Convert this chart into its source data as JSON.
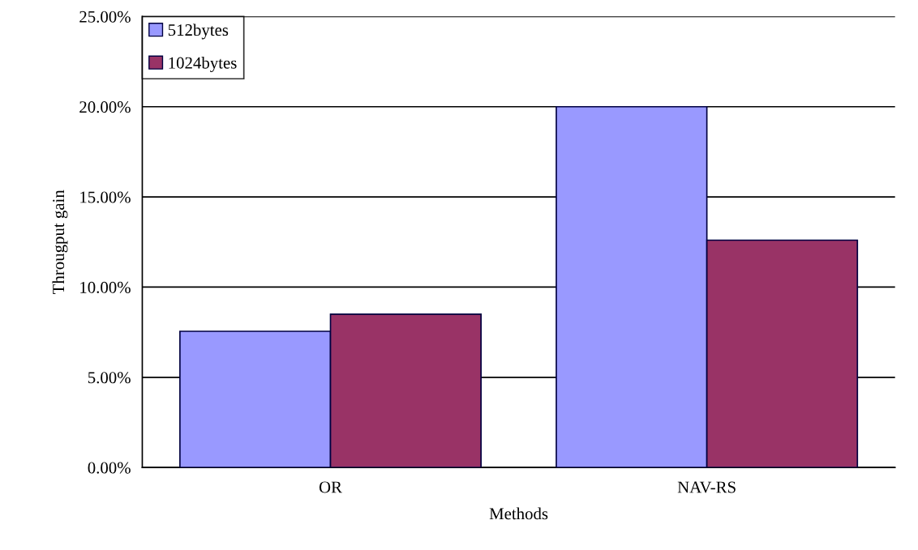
{
  "chart_data": {
    "type": "bar",
    "xlabel": "Methods",
    "ylabel": "Througput gain",
    "categories": [
      "OR",
      "NAV-RS"
    ],
    "series": [
      {
        "name": "512bytes",
        "color": "#9999ff",
        "values": [
          7.55,
          20.0
        ]
      },
      {
        "name": "1024bytes",
        "color": "#993366",
        "values": [
          8.5,
          12.6
        ]
      }
    ],
    "ylim": [
      0,
      25
    ],
    "yticks": [
      {
        "value": 0,
        "label": "0.00%"
      },
      {
        "value": 5,
        "label": "5.00%"
      },
      {
        "value": 10,
        "label": "10.00%"
      },
      {
        "value": 15,
        "label": "15.00%"
      },
      {
        "value": 20,
        "label": "20.00%"
      },
      {
        "value": 25,
        "label": "25.00%"
      }
    ],
    "grid": "y",
    "legend": "top left"
  }
}
